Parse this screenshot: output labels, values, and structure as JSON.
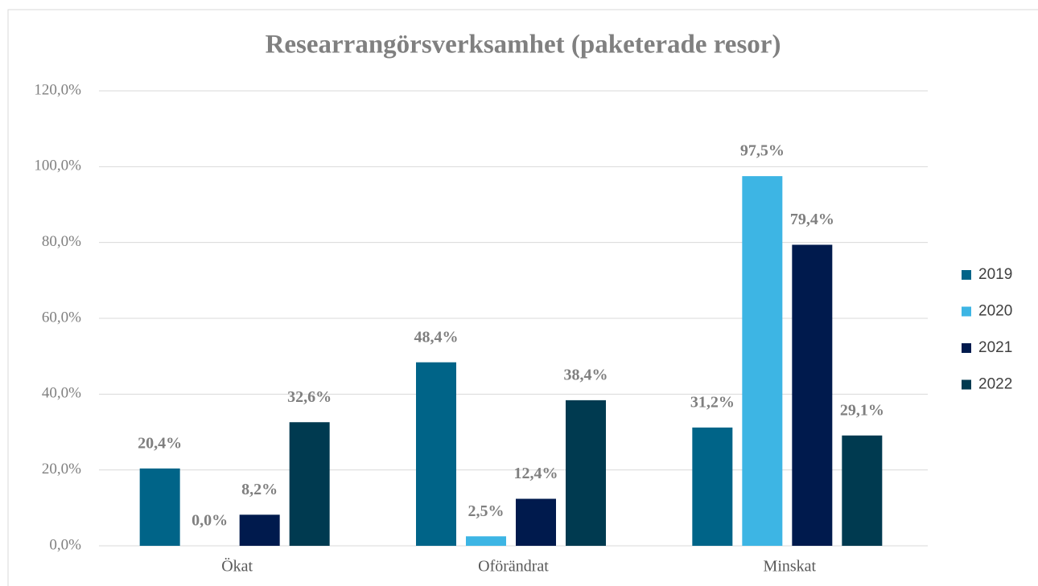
{
  "chart_data": {
    "type": "bar",
    "title": "Researrangörsverksamhet (paketerade resor)",
    "categories": [
      "Ökat",
      "Oförändrat",
      "Minskat"
    ],
    "series": [
      {
        "name": "2019",
        "color": "#006488",
        "values": [
          20.4,
          48.4,
          31.2
        ],
        "value_labels": [
          "20,4%",
          "48,4%",
          "31,2%"
        ]
      },
      {
        "name": "2020",
        "color": "#3db5e4",
        "values": [
          0,
          2.5,
          97.5
        ],
        "value_labels": [
          "0,0%",
          "2,5%",
          "97,5%"
        ]
      },
      {
        "name": "2021",
        "color": "#001a4d",
        "values": [
          8.2,
          12.4,
          79.4
        ],
        "value_labels": [
          "8,2%",
          "12,4%",
          "79,4%"
        ]
      },
      {
        "name": "2022",
        "color": "#003a50",
        "values": [
          32.6,
          38.4,
          29.1
        ],
        "value_labels": [
          "32,6%",
          "38,4%",
          "29,1%"
        ]
      }
    ],
    "ylim": [
      0,
      120
    ],
    "yticks": [
      {
        "value": 0,
        "label": "0,0%"
      },
      {
        "value": 20,
        "label": "20,0%"
      },
      {
        "value": 40,
        "label": "40,0%"
      },
      {
        "value": 60,
        "label": "60,0%"
      },
      {
        "value": 80,
        "label": "80,0%"
      },
      {
        "value": 100,
        "label": "100,0%"
      },
      {
        "value": 120,
        "label": "120,0%"
      }
    ],
    "grid": true,
    "legend": "right"
  }
}
